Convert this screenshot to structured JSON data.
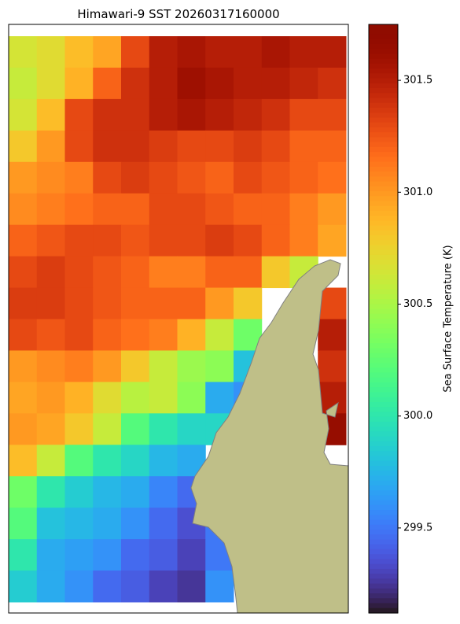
{
  "chart_data": {
    "type": "heatmap",
    "title": "Himawari-9 SST 20260317160000",
    "colorbar_label": "Sea Surface Temperature (K)",
    "colormap": "turbo",
    "clim": [
      299.12,
      301.75
    ],
    "cticks": [
      {
        "value": 299.5,
        "label": "299.5"
      },
      {
        "value": 300,
        "label": "300.0"
      },
      {
        "value": 300.5,
        "label": "300.5"
      },
      {
        "value": 301,
        "label": "301.0"
      },
      {
        "value": 301.5,
        "label": "301.5"
      }
    ],
    "values": [
      [
        300.65,
        300.7,
        300.85,
        300.95,
        301.3,
        301.5,
        301.55,
        301.5,
        301.5,
        301.55,
        301.5,
        301.5
      ],
      [
        300.6,
        300.7,
        300.9,
        301.2,
        301.4,
        301.5,
        301.6,
        301.55,
        301.5,
        301.5,
        301.45,
        301.4
      ],
      [
        300.65,
        300.85,
        301.3,
        301.4,
        301.4,
        301.5,
        301.55,
        301.5,
        301.45,
        301.4,
        301.3,
        301.3
      ],
      [
        300.8,
        301.0,
        301.3,
        301.4,
        301.4,
        301.35,
        301.3,
        301.3,
        301.35,
        301.3,
        301.2,
        301.2
      ],
      [
        301.0,
        301.05,
        301.1,
        301.3,
        301.35,
        301.3,
        301.25,
        301.2,
        301.3,
        301.25,
        301.2,
        301.15
      ],
      [
        301.05,
        301.1,
        301.15,
        301.2,
        301.2,
        301.3,
        301.3,
        301.25,
        301.2,
        301.2,
        301.1,
        301.0
      ],
      [
        301.2,
        301.25,
        301.3,
        301.3,
        301.25,
        301.3,
        301.3,
        301.35,
        301.3,
        301.2,
        301.1,
        300.95
      ],
      [
        301.3,
        301.35,
        301.3,
        301.25,
        301.2,
        301.1,
        301.1,
        301.2,
        301.2,
        300.8,
        300.6,
        null
      ],
      [
        301.35,
        301.35,
        301.3,
        301.25,
        301.2,
        301.2,
        301.2,
        301.0,
        300.8,
        null,
        null,
        301.3
      ],
      [
        301.3,
        301.25,
        301.3,
        301.2,
        301.15,
        301.1,
        300.9,
        300.6,
        300.3,
        null,
        null,
        301.5
      ],
      [
        301.0,
        301.05,
        301.1,
        301.0,
        300.8,
        300.6,
        300.45,
        300.4,
        299.8,
        null,
        null,
        301.4
      ],
      [
        300.95,
        301.0,
        300.9,
        300.7,
        300.55,
        300.6,
        300.4,
        299.7,
        299.6,
        null,
        null,
        301.5
      ],
      [
        301.0,
        300.95,
        300.8,
        300.6,
        300.2,
        300.0,
        299.9,
        299.9,
        null,
        null,
        null,
        301.65
      ],
      [
        300.85,
        300.6,
        300.2,
        300.0,
        299.9,
        299.75,
        299.7,
        null,
        null,
        null,
        null,
        null
      ],
      [
        300.3,
        300.0,
        299.85,
        299.75,
        299.7,
        299.55,
        299.45,
        null,
        null,
        null,
        null,
        null
      ],
      [
        300.2,
        299.8,
        299.75,
        299.7,
        299.6,
        299.45,
        299.35,
        299.5,
        null,
        null,
        null,
        null
      ],
      [
        300.0,
        299.7,
        299.65,
        299.6,
        299.45,
        299.4,
        299.3,
        299.5,
        null,
        null,
        null,
        null
      ],
      [
        299.85,
        299.7,
        299.6,
        299.45,
        299.4,
        299.3,
        299.25,
        299.6,
        null,
        null,
        null,
        null
      ]
    ]
  }
}
